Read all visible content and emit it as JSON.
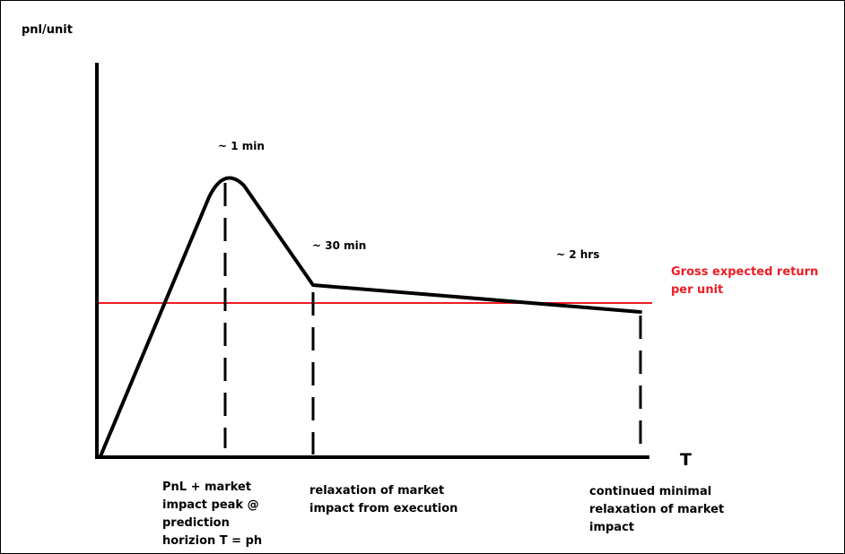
{
  "diagram": {
    "y_axis_label": "pnl/unit",
    "x_axis_label": "T",
    "annotations": {
      "peak_time": "~ 1 min",
      "relax_time": "~ 30 min",
      "end_time": "~ 2 hrs"
    },
    "reference_line_label": "Gross expected return\nper unit",
    "phase_labels": {
      "peak": "PnL + market\nimpact peak @\nprediction\nhorizion T = ph",
      "relaxation": "relaxation of market\nimpact from execution",
      "continued": "continued minimal\nrelaxation of market\nimpact"
    },
    "colors": {
      "curve": "#000000",
      "reference_line": "#ed1c24",
      "axes": "#000000"
    }
  }
}
